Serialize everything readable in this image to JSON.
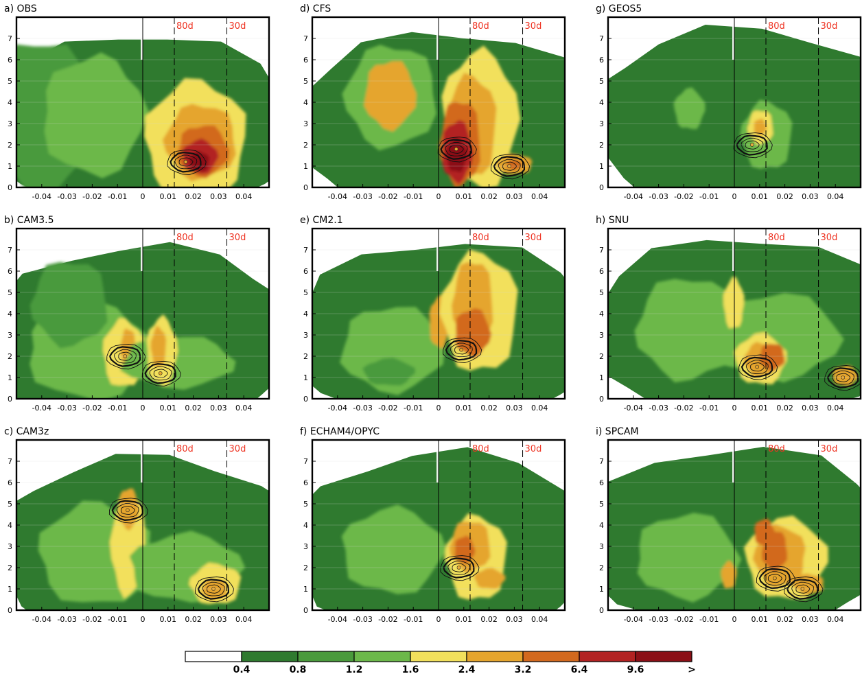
{
  "colors": {
    "levels": [
      "#ffffff",
      "#2f7a2f",
      "#4a9a3c",
      "#6cb84a",
      "#f2e05c",
      "#e5a52e",
      "#d2691e",
      "#b22222",
      "#8b0f16"
    ],
    "marker_text": "#ee3322",
    "contour": "#111111",
    "frame": "#000000",
    "gridline": "#d8d8d8"
  },
  "colorbar": {
    "labels": [
      "0.4",
      "0.8",
      "1.2",
      "1.6",
      "2.4",
      "3.2",
      "6.4",
      "9.6",
      ">"
    ]
  },
  "chart_data": [
    {
      "type": "heatmap",
      "panel_label": "a) OBS",
      "x_ticks": [
        -0.04,
        -0.03,
        -0.02,
        -0.01,
        0,
        0.01,
        0.02,
        0.03,
        0.04
      ],
      "x_tick_labels": [
        "-0.04",
        "-0.03",
        "-0.02",
        "-0.01",
        "0",
        "0.01",
        "0.02",
        "0.03",
        "0.04"
      ],
      "y_ticks": [
        0,
        1,
        2,
        3,
        4,
        5,
        6,
        7
      ],
      "y_tick_labels": [
        "0",
        "1",
        "2",
        "3",
        "4",
        "5",
        "6",
        "7"
      ],
      "xlim": [
        -0.05,
        0.05
      ],
      "ylim": [
        0,
        8
      ],
      "period_lines": [
        {
          "label": "80d",
          "x": 0.0125
        },
        {
          "label": "30d",
          "x": 0.0333
        }
      ],
      "peaks": [
        {
          "x": 0.017,
          "y": 1.2,
          "value": 9.6
        }
      ]
    },
    {
      "type": "heatmap",
      "panel_label": "b) CAM3.5",
      "x_ticks": [
        -0.04,
        -0.03,
        -0.02,
        -0.01,
        0,
        0.01,
        0.02,
        0.03,
        0.04
      ],
      "x_tick_labels": [
        "-0.04",
        "-0.03",
        "-0.02",
        "-0.01",
        "0",
        "0.01",
        "0.02",
        "0.03",
        "0.04"
      ],
      "y_ticks": [
        0,
        1,
        2,
        3,
        4,
        5,
        6,
        7
      ],
      "y_tick_labels": [
        "0",
        "1",
        "2",
        "3",
        "4",
        "5",
        "6",
        "7"
      ],
      "xlim": [
        -0.05,
        0.05
      ],
      "ylim": [
        0,
        8
      ],
      "period_lines": [
        {
          "label": "80d",
          "x": 0.0125
        },
        {
          "label": "30d",
          "x": 0.0333
        }
      ],
      "peaks": [
        {
          "x": -0.007,
          "y": 2.0,
          "value": 2.4
        },
        {
          "x": 0.007,
          "y": 1.2,
          "value": 2.4
        }
      ]
    },
    {
      "type": "heatmap",
      "panel_label": "c) CAM3z",
      "x_ticks": [
        -0.04,
        -0.03,
        -0.02,
        -0.01,
        0,
        0.01,
        0.02,
        0.03,
        0.04
      ],
      "x_tick_labels": [
        "-0.04",
        "-0.03",
        "-0.02",
        "-0.01",
        "0",
        "0.01",
        "0.02",
        "0.03",
        "0.04"
      ],
      "y_ticks": [
        0,
        1,
        2,
        3,
        4,
        5,
        6,
        7
      ],
      "y_tick_labels": [
        "0",
        "1",
        "2",
        "3",
        "4",
        "5",
        "6",
        "7"
      ],
      "xlim": [
        -0.05,
        0.05
      ],
      "ylim": [
        0,
        8
      ],
      "period_lines": [
        {
          "label": "80d",
          "x": 0.0125
        },
        {
          "label": "30d",
          "x": 0.0333
        }
      ],
      "peaks": [
        {
          "x": -0.006,
          "y": 4.7,
          "value": 2.4
        },
        {
          "x": 0.028,
          "y": 1.0,
          "value": 2.4
        }
      ]
    },
    {
      "type": "heatmap",
      "panel_label": "d) CFS",
      "x_ticks": [
        -0.04,
        -0.03,
        -0.02,
        -0.01,
        0,
        0.01,
        0.02,
        0.03,
        0.04
      ],
      "x_tick_labels": [
        "-0.04",
        "-0.03",
        "-0.02",
        "-0.01",
        "0",
        "0.01",
        "0.02",
        "0.03",
        "0.04"
      ],
      "y_ticks": [
        0,
        1,
        2,
        3,
        4,
        5,
        6,
        7
      ],
      "y_tick_labels": [
        "0",
        "1",
        "2",
        "3",
        "4",
        "5",
        "6",
        "7"
      ],
      "xlim": [
        -0.05,
        0.05
      ],
      "ylim": [
        0,
        8
      ],
      "period_lines": [
        {
          "label": "80d",
          "x": 0.0125
        },
        {
          "label": "30d",
          "x": 0.0333
        }
      ],
      "peaks": [
        {
          "x": 0.007,
          "y": 1.8,
          "value": 9.6
        },
        {
          "x": 0.028,
          "y": 1.0,
          "value": 2.4
        }
      ]
    },
    {
      "type": "heatmap",
      "panel_label": "e) CM2.1",
      "x_ticks": [
        -0.04,
        -0.03,
        -0.02,
        -0.01,
        0,
        0.01,
        0.02,
        0.03,
        0.04
      ],
      "x_tick_labels": [
        "-0.04",
        "-0.03",
        "-0.02",
        "-0.01",
        "0",
        "0.01",
        "0.02",
        "0.03",
        "0.04"
      ],
      "y_ticks": [
        0,
        1,
        2,
        3,
        4,
        5,
        6,
        7
      ],
      "y_tick_labels": [
        "0",
        "1",
        "2",
        "3",
        "4",
        "5",
        "6",
        "7"
      ],
      "xlim": [
        -0.05,
        0.05
      ],
      "ylim": [
        0,
        8
      ],
      "period_lines": [
        {
          "label": "80d",
          "x": 0.0125
        },
        {
          "label": "30d",
          "x": 0.0333
        }
      ],
      "peaks": [
        {
          "x": 0.009,
          "y": 2.3,
          "value": 3.2
        }
      ]
    },
    {
      "type": "heatmap",
      "panel_label": "f) ECHAM4/OPYC",
      "x_ticks": [
        -0.04,
        -0.03,
        -0.02,
        -0.01,
        0,
        0.01,
        0.02,
        0.03,
        0.04
      ],
      "x_tick_labels": [
        "-0.04",
        "-0.03",
        "-0.02",
        "-0.01",
        "0",
        "0.01",
        "0.02",
        "0.03",
        "0.04"
      ],
      "y_ticks": [
        0,
        1,
        2,
        3,
        4,
        5,
        6,
        7
      ],
      "y_tick_labels": [
        "0",
        "1",
        "2",
        "3",
        "4",
        "5",
        "6",
        "7"
      ],
      "xlim": [
        -0.05,
        0.05
      ],
      "ylim": [
        0,
        8
      ],
      "period_lines": [
        {
          "label": "80d",
          "x": 0.0125
        },
        {
          "label": "30d",
          "x": 0.0333
        }
      ],
      "peaks": [
        {
          "x": 0.008,
          "y": 2.0,
          "value": 3.2
        }
      ]
    },
    {
      "type": "heatmap",
      "panel_label": "g) GEOS5",
      "x_ticks": [
        -0.04,
        -0.03,
        -0.02,
        -0.01,
        0,
        0.01,
        0.02,
        0.03,
        0.04
      ],
      "x_tick_labels": [
        "-0.04",
        "-0.03",
        "-0.02",
        "-0.01",
        "0",
        "0.01",
        "0.02",
        "0.03",
        "0.04"
      ],
      "y_ticks": [
        0,
        1,
        2,
        3,
        4,
        5,
        6,
        7
      ],
      "y_tick_labels": [
        "0",
        "1",
        "2",
        "3",
        "4",
        "5",
        "6",
        "7"
      ],
      "xlim": [
        -0.05,
        0.05
      ],
      "ylim": [
        0,
        8
      ],
      "period_lines": [
        {
          "label": "80d",
          "x": 0.0125
        },
        {
          "label": "30d",
          "x": 0.0333
        }
      ],
      "peaks": [
        {
          "x": 0.007,
          "y": 2.0,
          "value": 2.4
        }
      ]
    },
    {
      "type": "heatmap",
      "panel_label": "h) SNU",
      "x_ticks": [
        -0.04,
        -0.03,
        -0.02,
        -0.01,
        0,
        0.01,
        0.02,
        0.03,
        0.04
      ],
      "x_tick_labels": [
        "-0.04",
        "-0.03",
        "-0.02",
        "-0.01",
        "0",
        "0.01",
        "0.02",
        "0.03",
        "0.04"
      ],
      "y_ticks": [
        0,
        1,
        2,
        3,
        4,
        5,
        6,
        7
      ],
      "y_tick_labels": [
        "0",
        "1",
        "2",
        "3",
        "4",
        "5",
        "6",
        "7"
      ],
      "xlim": [
        -0.05,
        0.05
      ],
      "ylim": [
        0,
        8
      ],
      "period_lines": [
        {
          "label": "80d",
          "x": 0.0125
        },
        {
          "label": "30d",
          "x": 0.0333
        }
      ],
      "peaks": [
        {
          "x": 0.009,
          "y": 1.5,
          "value": 3.2
        },
        {
          "x": 0.043,
          "y": 1.0,
          "value": 2.4
        }
      ]
    },
    {
      "type": "heatmap",
      "panel_label": "i) SPCAM",
      "x_ticks": [
        -0.04,
        -0.03,
        -0.02,
        -0.01,
        0,
        0.01,
        0.02,
        0.03,
        0.04
      ],
      "x_tick_labels": [
        "-0.04",
        "-0.03",
        "-0.02",
        "-0.01",
        "0",
        "0.01",
        "0.02",
        "0.03",
        "0.04"
      ],
      "y_ticks": [
        0,
        1,
        2,
        3,
        4,
        5,
        6,
        7
      ],
      "y_tick_labels": [
        "0",
        "1",
        "2",
        "3",
        "4",
        "5",
        "6",
        "7"
      ],
      "xlim": [
        -0.05,
        0.05
      ],
      "ylim": [
        0,
        8
      ],
      "period_lines": [
        {
          "label": "80d",
          "x": 0.0125
        },
        {
          "label": "30d",
          "x": 0.0333
        }
      ],
      "peaks": [
        {
          "x": 0.016,
          "y": 1.5,
          "value": 3.2
        },
        {
          "x": 0.027,
          "y": 1.0,
          "value": 2.4
        }
      ]
    }
  ]
}
